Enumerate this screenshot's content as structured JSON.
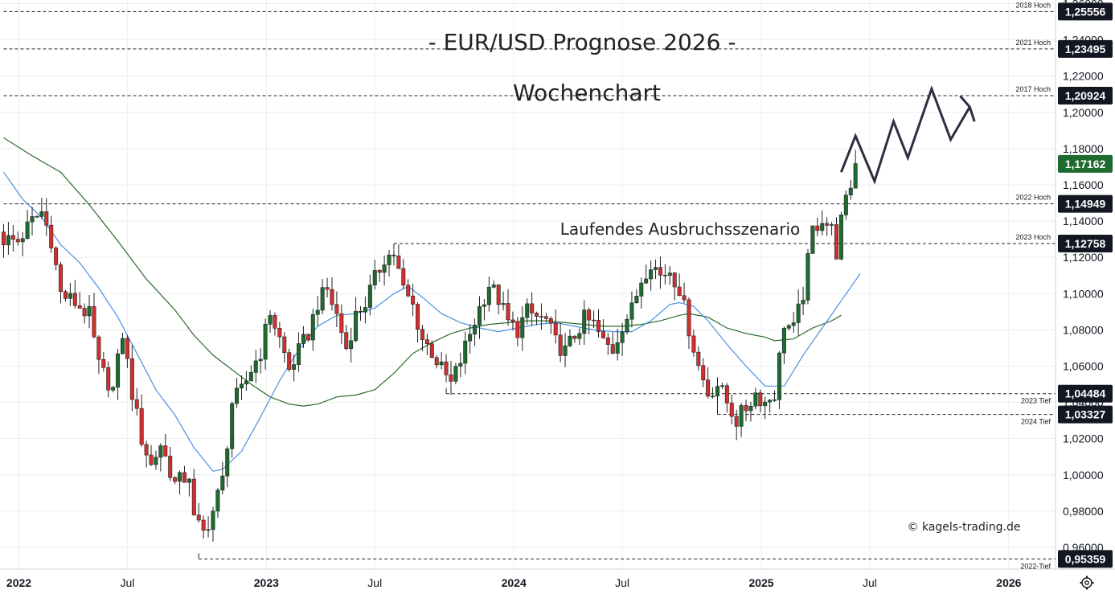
{
  "chart_data": {
    "type": "candlestick",
    "title": "- EUR/USD Prognose 2026 -",
    "subtitle": "Wochenchart",
    "annotation": "Laufendes Ausbruchsszenario",
    "credit": "© kagels-trading.de",
    "settings_icon": "gear-icon",
    "y_axis": {
      "range": [
        0.948,
        1.262
      ],
      "ticks": [
        "1,26000",
        "1,24000",
        "1,22000",
        "1,20000",
        "1,18000",
        "1,16000",
        "1,14000",
        "1,12000",
        "1,10000",
        "1,08000",
        "1,06000",
        "1,04000",
        "1,02000",
        "1,00000",
        "0,98000",
        "0,96000"
      ]
    },
    "x_axis": {
      "labels": [
        {
          "text": "2022",
          "year": true,
          "week": 0
        },
        {
          "text": "Jul",
          "year": false,
          "week": 26
        },
        {
          "text": "2023",
          "year": true,
          "week": 52
        },
        {
          "text": "Jul",
          "year": false,
          "week": 78
        },
        {
          "text": "2024",
          "year": true,
          "week": 104
        },
        {
          "text": "Jul",
          "year": false,
          "week": 130
        },
        {
          "text": "2025",
          "year": true,
          "week": 156
        },
        {
          "text": "Jul",
          "year": false,
          "week": 182
        },
        {
          "text": "2026",
          "year": true,
          "week": 208
        }
      ]
    },
    "current_price": {
      "label": "1,17162",
      "value": 1.1716
    },
    "levels": [
      {
        "name": "2018 Hoch",
        "label": "1,25556",
        "value": 1.2556,
        "week_start": 0,
        "tag_side": "above"
      },
      {
        "name": "2021 Hoch",
        "label": "1,23495",
        "value": 1.235,
        "week_start": 0,
        "tag_side": "above"
      },
      {
        "name": "2017 Hoch",
        "label": "1,20924",
        "value": 1.2092,
        "week_start": 0,
        "tag_side": "above"
      },
      {
        "name": "2022 Hoch",
        "label": "1,14949",
        "value": 1.1495,
        "week_start": 0,
        "tag_side": "above"
      },
      {
        "name": "2023 Hoch",
        "label": "1,12758",
        "value": 1.1276,
        "week_start": 82,
        "tag_side": "above"
      },
      {
        "name": "2023 Tief",
        "label": "1,04484",
        "value": 1.0448,
        "week_start": 93,
        "tag_side": "below"
      },
      {
        "name": "2024 Tief",
        "label": "1,03327",
        "value": 1.0333,
        "week_start": 150,
        "tag_side": "below"
      },
      {
        "name": "2022-Tief",
        "label": "0,95359",
        "value": 0.9536,
        "week_start": 41,
        "tag_side": "below"
      }
    ],
    "colors": {
      "up": "#1e6b2f",
      "down": "#d32f2f",
      "ma_fast": "#4a90e2",
      "ma_slow": "#2e6b2e",
      "badge_dark": "#131722",
      "badge_green": "#1e6b2f",
      "grid": "#eeeeee",
      "projection": "#2b3040"
    },
    "ma_fast_20w": [
      [
        0,
        1.167
      ],
      [
        4,
        1.152
      ],
      [
        8,
        1.142
      ],
      [
        12,
        1.127
      ],
      [
        16,
        1.117
      ],
      [
        20,
        1.103
      ],
      [
        24,
        1.087
      ],
      [
        28,
        1.067
      ],
      [
        32,
        1.047
      ],
      [
        36,
        1.033
      ],
      [
        40,
        1.015
      ],
      [
        44,
        1.002
      ],
      [
        46,
        1.003
      ],
      [
        50,
        1.013
      ],
      [
        54,
        1.032
      ],
      [
        58,
        1.052
      ],
      [
        62,
        1.069
      ],
      [
        66,
        1.082
      ],
      [
        70,
        1.088
      ],
      [
        74,
        1.089
      ],
      [
        78,
        1.092
      ],
      [
        82,
        1.1
      ],
      [
        85,
        1.104
      ],
      [
        88,
        1.098
      ],
      [
        92,
        1.089
      ],
      [
        96,
        1.084
      ],
      [
        100,
        1.081
      ],
      [
        104,
        1.079
      ],
      [
        108,
        1.081
      ],
      [
        112,
        1.083
      ],
      [
        116,
        1.084
      ],
      [
        120,
        1.082
      ],
      [
        124,
        1.08
      ],
      [
        128,
        1.079
      ],
      [
        132,
        1.079
      ],
      [
        136,
        1.085
      ],
      [
        140,
        1.094
      ],
      [
        142,
        1.095
      ],
      [
        145,
        1.093
      ],
      [
        148,
        1.085
      ],
      [
        152,
        1.072
      ],
      [
        156,
        1.06
      ],
      [
        160,
        1.049
      ],
      [
        164,
        1.049
      ],
      [
        168,
        1.066
      ],
      [
        172,
        1.081
      ],
      [
        176,
        1.096
      ],
      [
        180,
        1.111
      ]
    ],
    "ma_slow_50w": [
      [
        0,
        1.186
      ],
      [
        6,
        1.176
      ],
      [
        12,
        1.167
      ],
      [
        18,
        1.149
      ],
      [
        24,
        1.129
      ],
      [
        30,
        1.108
      ],
      [
        36,
        1.091
      ],
      [
        40,
        1.077
      ],
      [
        44,
        1.066
      ],
      [
        48,
        1.058
      ],
      [
        52,
        1.05
      ],
      [
        56,
        1.043
      ],
      [
        60,
        1.039
      ],
      [
        63,
        1.038
      ],
      [
        66,
        1.039
      ],
      [
        70,
        1.043
      ],
      [
        74,
        1.044
      ],
      [
        78,
        1.047
      ],
      [
        82,
        1.056
      ],
      [
        86,
        1.067
      ],
      [
        90,
        1.073
      ],
      [
        94,
        1.078
      ],
      [
        98,
        1.081
      ],
      [
        102,
        1.083
      ],
      [
        106,
        1.084
      ],
      [
        110,
        1.085
      ],
      [
        114,
        1.085
      ],
      [
        118,
        1.084
      ],
      [
        122,
        1.083
      ],
      [
        126,
        1.082
      ],
      [
        130,
        1.082
      ],
      [
        134,
        1.083
      ],
      [
        138,
        1.085
      ],
      [
        142,
        1.088
      ],
      [
        144,
        1.089
      ],
      [
        148,
        1.087
      ],
      [
        152,
        1.081
      ],
      [
        156,
        1.078
      ],
      [
        160,
        1.076
      ],
      [
        162,
        1.074
      ],
      [
        166,
        1.075
      ],
      [
        170,
        1.081
      ],
      [
        174,
        1.085
      ],
      [
        176,
        1.088
      ]
    ],
    "projection_path": [
      [
        176,
        1.167
      ],
      [
        179,
        1.187
      ],
      [
        183,
        1.162
      ],
      [
        187,
        1.195
      ],
      [
        190,
        1.175
      ],
      [
        195,
        1.213
      ],
      [
        199,
        1.185
      ],
      [
        203,
        1.203
      ],
      [
        201,
        1.209
      ],
      [
        203,
        1.203
      ],
      [
        204,
        1.195
      ]
    ],
    "ohlc_waypoints": [
      [
        0,
        1.13
      ],
      [
        3,
        1.129
      ],
      [
        6,
        1.14
      ],
      [
        8,
        1.145
      ],
      [
        10,
        1.13
      ],
      [
        12,
        1.1
      ],
      [
        15,
        1.095
      ],
      [
        18,
        1.088
      ],
      [
        20,
        1.06
      ],
      [
        23,
        1.047
      ],
      [
        25,
        1.078
      ],
      [
        27,
        1.045
      ],
      [
        29,
        1.02
      ],
      [
        31,
        1.005
      ],
      [
        33,
        1.017
      ],
      [
        36,
        0.995
      ],
      [
        39,
        1.0
      ],
      [
        40,
        0.975
      ],
      [
        42,
        0.968
      ],
      [
        44,
        0.98
      ],
      [
        46,
        0.997
      ],
      [
        48,
        1.04
      ],
      [
        50,
        1.046
      ],
      [
        52,
        1.058
      ],
      [
        54,
        1.068
      ],
      [
        56,
        1.09
      ],
      [
        58,
        1.075
      ],
      [
        60,
        1.058
      ],
      [
        62,
        1.068
      ],
      [
        64,
        1.078
      ],
      [
        66,
        1.095
      ],
      [
        68,
        1.102
      ],
      [
        70,
        1.088
      ],
      [
        72,
        1.07
      ],
      [
        74,
        1.088
      ],
      [
        76,
        1.095
      ],
      [
        78,
        1.108
      ],
      [
        80,
        1.12
      ],
      [
        82,
        1.122
      ],
      [
        84,
        1.102
      ],
      [
        86,
        1.093
      ],
      [
        88,
        1.075
      ],
      [
        90,
        1.068
      ],
      [
        92,
        1.058
      ],
      [
        94,
        1.05
      ],
      [
        96,
        1.063
      ],
      [
        98,
        1.078
      ],
      [
        100,
        1.092
      ],
      [
        102,
        1.105
      ],
      [
        104,
        1.097
      ],
      [
        106,
        1.084
      ],
      [
        108,
        1.08
      ],
      [
        110,
        1.09
      ],
      [
        112,
        1.087
      ],
      [
        114,
        1.085
      ],
      [
        116,
        1.073
      ],
      [
        118,
        1.068
      ],
      [
        120,
        1.077
      ],
      [
        122,
        1.086
      ],
      [
        124,
        1.083
      ],
      [
        126,
        1.073
      ],
      [
        128,
        1.069
      ],
      [
        130,
        1.083
      ],
      [
        132,
        1.091
      ],
      [
        134,
        1.108
      ],
      [
        136,
        1.118
      ],
      [
        138,
        1.11
      ],
      [
        140,
        1.113
      ],
      [
        142,
        1.103
      ],
      [
        144,
        1.081
      ],
      [
        146,
        1.06
      ],
      [
        148,
        1.045
      ],
      [
        150,
        1.05
      ],
      [
        152,
        1.04
      ],
      [
        154,
        1.03
      ],
      [
        156,
        1.037
      ],
      [
        158,
        1.045
      ],
      [
        160,
        1.04
      ],
      [
        162,
        1.045
      ],
      [
        164,
        1.084
      ],
      [
        166,
        1.08
      ],
      [
        168,
        1.1
      ],
      [
        170,
        1.135
      ],
      [
        172,
        1.142
      ],
      [
        174,
        1.135
      ],
      [
        175,
        1.123
      ],
      [
        176,
        1.14
      ],
      [
        178,
        1.16
      ],
      [
        179,
        1.172
      ]
    ]
  }
}
